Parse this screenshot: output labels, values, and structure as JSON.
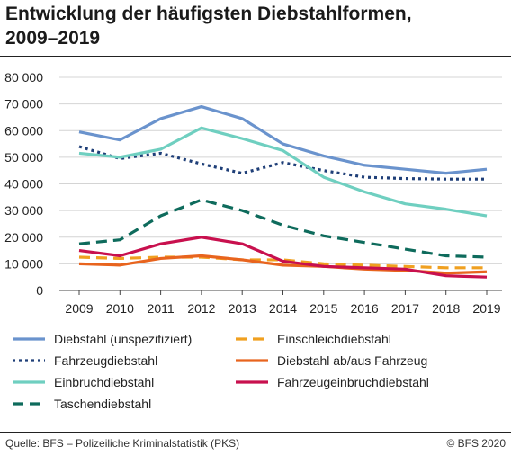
{
  "title_line1": "Entwicklung der häufigsten Diebstahlformen,",
  "title_line2": "2009–2019",
  "source": "Quelle: BFS – Polizeiliche Kriminalstatistik (PKS)",
  "copyright": "© BFS 2020",
  "chart_data": {
    "type": "line",
    "x": [
      2009,
      2010,
      2011,
      2012,
      2013,
      2014,
      2015,
      2016,
      2017,
      2018,
      2019
    ],
    "ylim": [
      0,
      80000
    ],
    "yticks": [
      0,
      10000,
      20000,
      30000,
      40000,
      50000,
      60000,
      70000,
      80000
    ],
    "ytick_labels": [
      "0",
      "10 000",
      "20 000",
      "30 000",
      "40 000",
      "50 000",
      "60 000",
      "70 000",
      "80 000"
    ],
    "grid": "horizontal",
    "legend_position": "bottom",
    "series": [
      {
        "name": "Diebstahl (unspezifiziert)",
        "color": "#6a93cd",
        "style": "solid",
        "values": [
          59500,
          56500,
          64500,
          69000,
          64500,
          55000,
          50500,
          47000,
          45500,
          44000,
          45500
        ]
      },
      {
        "name": "Fahrzeugdiebstahl",
        "color": "#1f3f78",
        "style": "dotted",
        "values": [
          54000,
          49500,
          51500,
          47500,
          44000,
          48000,
          45000,
          42500,
          42000,
          41800,
          41800
        ]
      },
      {
        "name": "Einbruchdiebstahl",
        "color": "#6fcfc0",
        "style": "solid",
        "values": [
          51500,
          50000,
          53000,
          61000,
          57000,
          52500,
          42500,
          37000,
          32500,
          30500,
          28000
        ]
      },
      {
        "name": "Taschendiebstahl",
        "color": "#0e6b5c",
        "style": "dashed",
        "values": [
          17500,
          19000,
          28000,
          34000,
          30000,
          24500,
          20500,
          18000,
          15500,
          13000,
          12500
        ]
      },
      {
        "name": "Einschleichdiebstahl",
        "color": "#f0a020",
        "style": "dashed",
        "values": [
          12500,
          12000,
          12500,
          12500,
          11500,
          11500,
          10000,
          9500,
          9000,
          8500,
          8500
        ]
      },
      {
        "name": "Diebstahl ab/aus Fahrzeug",
        "color": "#e8641e",
        "style": "solid",
        "values": [
          10000,
          9500,
          12000,
          13000,
          11500,
          9500,
          9000,
          8000,
          7500,
          6500,
          7000
        ]
      },
      {
        "name": "Fahrzeugeinbruchdiebstahl",
        "color": "#c8104e",
        "style": "solid",
        "values": [
          15000,
          13000,
          17500,
          20000,
          17500,
          11000,
          9000,
          8500,
          8000,
          5500,
          5000
        ]
      }
    ]
  }
}
